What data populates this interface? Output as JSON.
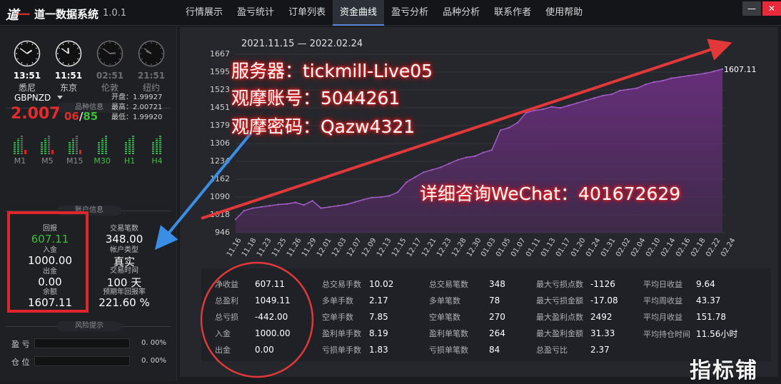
{
  "app": {
    "title": "道一数据系统",
    "version": "1.0.1",
    "logo_text": "道一"
  },
  "menu": [
    "行情展示",
    "盈亏统计",
    "订单列表",
    "资金曲线",
    "盈亏分析",
    "品种分析",
    "联系作者",
    "使用帮助"
  ],
  "active_menu": "资金曲线",
  "window": {
    "minimize": "—",
    "close": "✕"
  },
  "clocks": [
    {
      "time": "13:51",
      "city": "悉尼",
      "active": true,
      "hour": 13,
      "minute": 51
    },
    {
      "time": "11:51",
      "city": "东京",
      "active": true,
      "hour": 11,
      "minute": 51
    },
    {
      "time": "02:51",
      "city": "伦敦",
      "active": false,
      "hour": 2,
      "minute": 51
    },
    {
      "time": "21:51",
      "city": "纽约",
      "active": false,
      "hour": 21,
      "minute": 51
    }
  ],
  "symbol_section": {
    "title": "品种信息",
    "symbol": "GBPNZD",
    "price_main": "2.007",
    "price_red": "06",
    "price_sep": "/",
    "price_green": "85",
    "open": "开盘：1.99927",
    "high": "最高：2.00721",
    "low": "最低：1.99920",
    "timeframes": [
      {
        "label": "M1",
        "on": false
      },
      {
        "label": "M5",
        "on": false
      },
      {
        "label": "M15",
        "on": false
      },
      {
        "label": "M30",
        "on": true
      },
      {
        "label": "H1",
        "on": true
      },
      {
        "label": "H4",
        "on": true
      }
    ]
  },
  "account_section": {
    "title": "账户信息",
    "return_label": "回报",
    "return_value": "607.11",
    "deposit_label": "入金",
    "deposit_value": "1000.00",
    "withdraw_label": "出金",
    "withdraw_value": "0.00",
    "balance_label": "余额",
    "balance_value": "1607.11",
    "trades_label": "交易笔数",
    "trades_value": "348.00",
    "type_label": "帐户类型",
    "type_value": "真实",
    "time_label": "交易时间",
    "time_value": "100 天",
    "annual_label": "预期年回报率",
    "annual_value": "221.60 %"
  },
  "risk_section": {
    "title": "风险提示",
    "rows": [
      {
        "label": "盈 亏",
        "value": "0. 00%",
        "level": 0
      },
      {
        "label": "仓 位",
        "value": "0. 00%",
        "level": 0
      }
    ]
  },
  "chart_data": {
    "type": "area",
    "title": "2021.11.15 — 2022.02.24",
    "ylim": [
      946,
      1667
    ],
    "y_ticks": [
      "1667",
      "1595",
      "1523",
      "1451",
      "1379",
      "1306",
      "1234",
      "1162",
      "1090",
      "1018",
      "946"
    ],
    "x_ticks": [
      "11.16",
      "11.18",
      "11.23",
      "11.25",
      "11.26",
      "11.29",
      "12.01",
      "12.03",
      "12.07",
      "12.09",
      "12.13",
      "12.15",
      "12.17",
      "12.21",
      "12.23",
      "12.28",
      "12.30",
      "01.03",
      "01.05",
      "01.07",
      "01.11",
      "01.13",
      "01.17",
      "01.20",
      "01.24",
      "01.31",
      "02.02",
      "02.04",
      "02.10",
      "02.14",
      "02.16",
      "02.18",
      "02.22",
      "02.24"
    ],
    "values": [
      1000,
      1035,
      1045,
      1050,
      1055,
      1060,
      1062,
      1068,
      1058,
      1075,
      1045,
      1050,
      1055,
      1060,
      1070,
      1080,
      1088,
      1090,
      1095,
      1110,
      1150,
      1170,
      1190,
      1200,
      1210,
      1225,
      1240,
      1250,
      1255,
      1270,
      1280,
      1360,
      1370,
      1390,
      1430,
      1440,
      1445,
      1455,
      1450,
      1460,
      1470,
      1480,
      1490,
      1500,
      1505,
      1520,
      1525,
      1530,
      1545,
      1555,
      1560,
      1570,
      1575,
      1580,
      1585,
      1590,
      1598,
      1607.11
    ],
    "last_label": "1607.11",
    "colors": {
      "line": "#a45cc8",
      "fill": "#6a2f7e"
    }
  },
  "overlay": {
    "server": "服务器：tickmill-Live05",
    "account": "观摩账号：5044261",
    "password": "观摩密码：Qazw4321",
    "contact": "详细咨询WeChat：401672629"
  },
  "stats": [
    [
      {
        "l": "净收益",
        "v": "607.11"
      },
      {
        "l": "总盈利",
        "v": "1049.11"
      },
      {
        "l": "总亏损",
        "v": "-442.00"
      },
      {
        "l": "入金",
        "v": "1000.00"
      },
      {
        "l": "出金",
        "v": "0.00"
      }
    ],
    [
      {
        "l": "总交易手数",
        "v": "10.02"
      },
      {
        "l": "多单手数",
        "v": "2.17"
      },
      {
        "l": "空单手数",
        "v": "7.85"
      },
      {
        "l": "盈利单手数",
        "v": "8.19"
      },
      {
        "l": "亏损单手数",
        "v": "1.83"
      }
    ],
    [
      {
        "l": "总交易笔数",
        "v": "348"
      },
      {
        "l": "多单笔数",
        "v": "78"
      },
      {
        "l": "空单笔数",
        "v": "270"
      },
      {
        "l": "盈利单笔数",
        "v": "264"
      },
      {
        "l": "亏损单笔数",
        "v": "84"
      }
    ],
    [
      {
        "l": "最大亏损点数",
        "v": "-1126"
      },
      {
        "l": "最大亏损金额",
        "v": "-17.08"
      },
      {
        "l": "最大盈利点数",
        "v": "2492"
      },
      {
        "l": "最大盈利金额",
        "v": "31.33"
      },
      {
        "l": "总盈亏比",
        "v": "2.37"
      }
    ],
    [
      {
        "l": "平均日收益",
        "v": "9.64"
      },
      {
        "l": "平均周收益",
        "v": "43.37"
      },
      {
        "l": "平均月收益",
        "v": "151.78"
      },
      {
        "l": "平均持仓时间",
        "v": "11.56小时"
      }
    ]
  ],
  "watermark": "指标铺"
}
